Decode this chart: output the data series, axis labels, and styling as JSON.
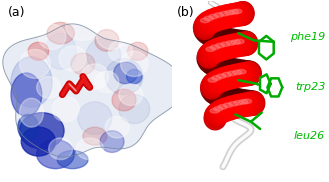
{
  "panel_a_label": "(a)",
  "panel_b_label": "(b)",
  "label_fontsize": 9,
  "label_color": "black",
  "residue_labels": [
    "phe19",
    "trp23",
    "leu26"
  ],
  "residue_label_color": "#00bb00",
  "residue_label_fontsize": 8,
  "background_color": "white",
  "sidechain_color": "#00aa00",
  "helix_red": "#cc0000",
  "helix_dark": "#330000",
  "helix_highlight": "#ff6666",
  "surface_light": "#dde4ee",
  "surface_blue_dark": "#1133aa",
  "surface_blue_mid": "#4466cc",
  "surface_red_dark": "#aa1111",
  "surface_red_light": "#cc6666",
  "loop_color": "#cccccc",
  "loop_inner": "#ffffff"
}
